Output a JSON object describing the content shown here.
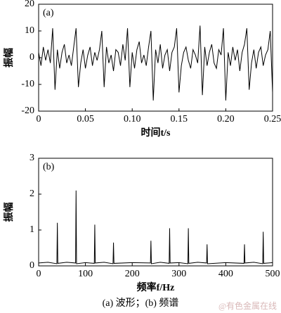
{
  "chart_data": [
    {
      "type": "line",
      "annotation": "(a)",
      "x_label": "时间t/s",
      "y_label": "振幅",
      "x": [
        0,
        0.0025,
        0.005,
        0.0075,
        0.01,
        0.0125,
        0.015,
        0.0175,
        0.02,
        0.0225,
        0.025,
        0.0275,
        0.03,
        0.0325,
        0.035,
        0.0375,
        0.04,
        0.0425,
        0.045,
        0.0475,
        0.05,
        0.0525,
        0.055,
        0.0575,
        0.06,
        0.0625,
        0.065,
        0.0675,
        0.07,
        0.0725,
        0.075,
        0.0775,
        0.08,
        0.0825,
        0.085,
        0.0875,
        0.09,
        0.0925,
        0.095,
        0.0975,
        0.1,
        0.1025,
        0.105,
        0.1075,
        0.11,
        0.1125,
        0.115,
        0.1175,
        0.12,
        0.1225,
        0.125,
        0.1275,
        0.13,
        0.1325,
        0.135,
        0.1375,
        0.14,
        0.1425,
        0.145,
        0.1475,
        0.15,
        0.1525,
        0.155,
        0.1575,
        0.16,
        0.1625,
        0.165,
        0.1675,
        0.17,
        0.1725,
        0.175,
        0.1775,
        0.18,
        0.1825,
        0.185,
        0.1875,
        0.19,
        0.1925,
        0.195,
        0.1975,
        0.2,
        0.2025,
        0.205,
        0.2075,
        0.21,
        0.2125,
        0.215,
        0.2175,
        0.22,
        0.2225,
        0.225,
        0.2275,
        0.23,
        0.2325,
        0.235,
        0.2375,
        0.24,
        0.2425,
        0.245,
        0.2475,
        0.25
      ],
      "series": [
        {
          "color": "#000000",
          "values": [
            2,
            -3,
            4,
            -1,
            3,
            -2,
            11,
            -12,
            3,
            -4,
            2,
            5,
            -2,
            1,
            -3,
            4,
            11,
            -11,
            -2,
            3,
            -4,
            1,
            4,
            -3,
            2,
            -1,
            3,
            10,
            -11,
            4,
            -2,
            1,
            -5,
            3,
            2,
            -3,
            5,
            -1,
            11,
            -11,
            2,
            -4,
            3,
            6,
            -2,
            1,
            -3,
            4,
            10,
            -16,
            3,
            -2,
            5,
            -4,
            1,
            3,
            -5,
            2,
            4,
            11,
            -13,
            -3,
            2,
            4,
            -1,
            -4,
            3,
            1,
            -2,
            12,
            -14,
            4,
            -3,
            2,
            5,
            -2,
            -4,
            3,
            1,
            11,
            -16,
            2,
            -3,
            4,
            -1,
            3,
            -5,
            2,
            5,
            11,
            -12,
            -2,
            3,
            -4,
            2,
            4,
            -3,
            1,
            3,
            10,
            -13
          ]
        }
      ],
      "xlim": [
        0,
        0.25
      ],
      "xticks": [
        0,
        0.05,
        {
          "value": 0.1,
          "label": "0.10"
        },
        0.15,
        {
          "value": 0.2,
          "label": "0.20"
        },
        0.25
      ],
      "ylim": [
        -20,
        20
      ],
      "yticks": [
        -20,
        -10,
        0,
        10,
        20
      ]
    },
    {
      "type": "line",
      "annotation": "(b)",
      "x_label": "频率f/Hz",
      "y_label": "振幅",
      "x": [
        0,
        20,
        39,
        40,
        41,
        60,
        79,
        80,
        81,
        100,
        119,
        120,
        121,
        140,
        159,
        160,
        161,
        200,
        239,
        240,
        241,
        260,
        279,
        280,
        281,
        300,
        319,
        320,
        321,
        340,
        359,
        360,
        361,
        400,
        439,
        440,
        441,
        460,
        479,
        480,
        481,
        500
      ],
      "series": [
        {
          "color": "#000000",
          "values": [
            0.08,
            0.1,
            0.06,
            1.2,
            0.07,
            0.1,
            0.08,
            2.1,
            0.06,
            0.09,
            0.07,
            1.15,
            0.08,
            0.1,
            0.06,
            0.65,
            0.07,
            0.09,
            0.08,
            0.7,
            0.06,
            0.1,
            0.07,
            1.05,
            0.08,
            0.09,
            0.06,
            1.05,
            0.07,
            0.1,
            0.08,
            0.6,
            0.06,
            0.09,
            0.07,
            0.6,
            0.08,
            0.1,
            0.06,
            0.95,
            0.07,
            0.09
          ]
        }
      ],
      "xlim": [
        0,
        500
      ],
      "xticks": [
        0,
        100,
        200,
        300,
        400,
        500
      ],
      "ylim": [
        0,
        3
      ],
      "yticks": [
        0,
        1,
        2,
        3
      ]
    }
  ],
  "caption": "(a) 波形；(b) 频谱",
  "watermark": "@有色金属在线"
}
